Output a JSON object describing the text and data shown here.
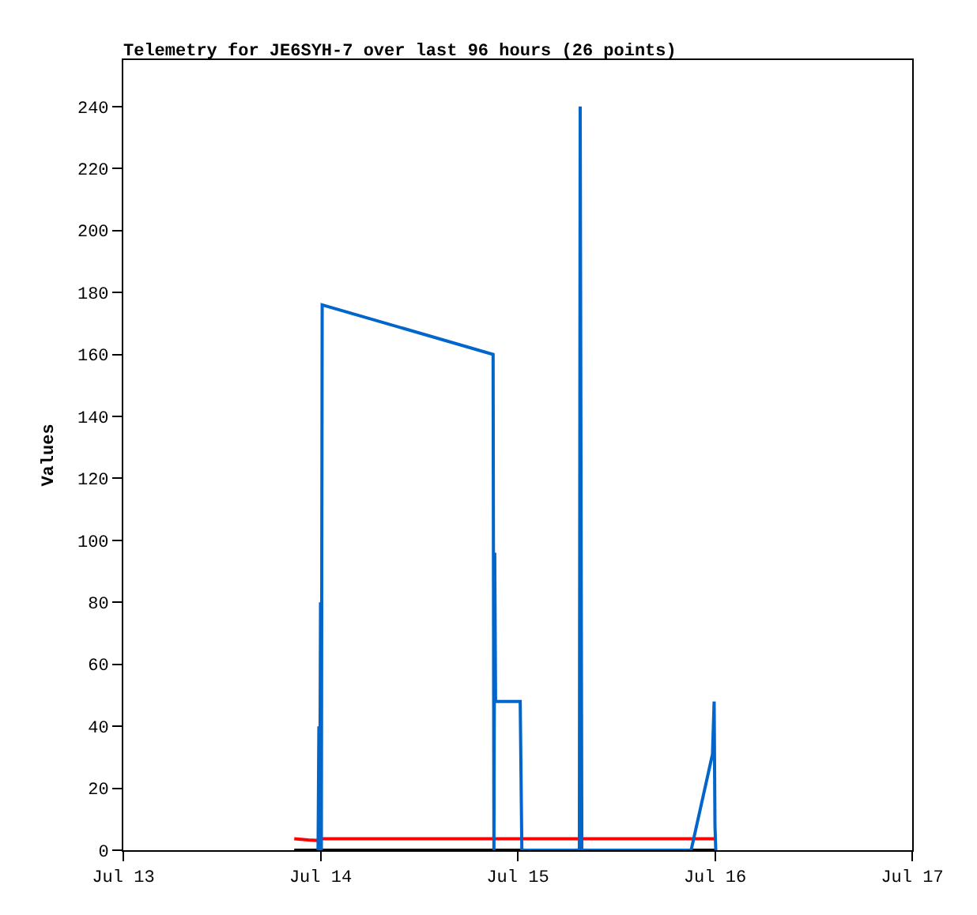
{
  "chart_data": {
    "type": "line",
    "title": "Telemetry for JE6SYH-7 over last 96 hours (26 points)",
    "ylabel": "Values",
    "xlim": [
      "--07-13",
      "--07-17"
    ],
    "xticks": [
      {
        "value": "--07-13",
        "label": "Jul 13"
      },
      {
        "value": "--07-14",
        "label": "Jul 14"
      },
      {
        "value": "--07-15",
        "label": "Jul 15"
      },
      {
        "value": "--07-16",
        "label": "Jul 16"
      },
      {
        "value": "--07-17",
        "label": "Jul 17"
      }
    ],
    "ylim": [
      0,
      255
    ],
    "yticks": [
      0,
      20,
      40,
      60,
      80,
      100,
      120,
      140,
      160,
      180,
      200,
      220,
      240
    ],
    "marker": "none",
    "line_style": "solid",
    "series": [
      {
        "color": "#ff0000",
        "x": [
          "--07-13T20:48",
          "--07-13T22:30",
          "--07-13T23:54",
          "--07-14T00:12",
          "--07-16T00:06"
        ],
        "values": [
          3.7,
          3.3,
          3.1,
          3.7,
          3.7
        ]
      },
      {
        "color": "#000000",
        "x": [
          "--07-13T20:48",
          "--07-16T00:06"
        ],
        "values": [
          0,
          0
        ]
      },
      {
        "color": "#0066cc",
        "x": [
          "--07-13T23:42",
          "--07-13T23:48",
          "--07-13T23:54",
          "--07-14T00:00",
          "--07-14T00:06",
          "--07-14T00:12",
          "--07-14T21:00",
          "--07-14T21:06",
          "--07-14T21:12",
          "--07-14T21:18",
          "--07-15T00:18",
          "--07-15T00:24",
          "--07-15T00:30",
          "--07-15T07:30",
          "--07-15T07:36",
          "--07-15T07:42",
          "--07-15T07:48",
          "--07-15T21:06",
          "--07-15T23:42",
          "--07-15T23:54",
          "--07-16T00:00",
          "--07-16T00:06"
        ],
        "values": [
          0,
          40,
          0,
          80,
          0,
          176,
          160,
          0,
          96,
          48,
          48,
          24,
          0,
          0,
          240,
          120,
          0,
          0,
          31,
          48,
          8,
          0
        ]
      }
    ]
  }
}
